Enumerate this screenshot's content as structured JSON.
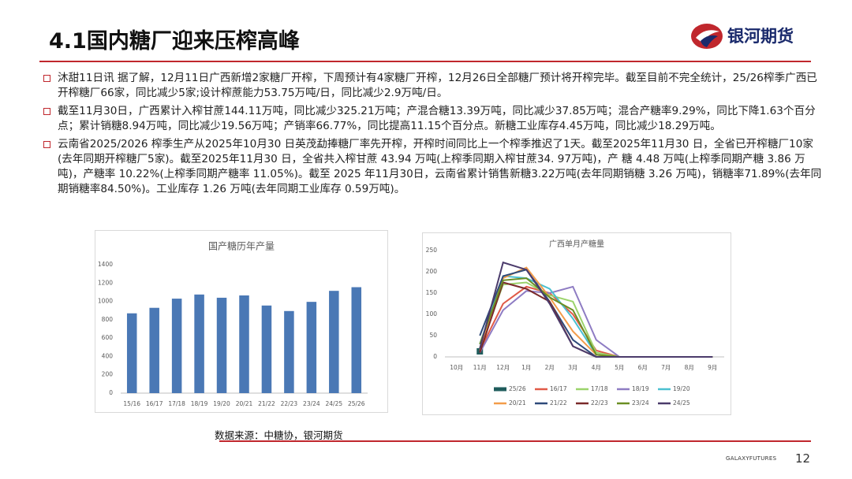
{
  "header": {
    "title": "4.1国内糖厂迎来压榨高峰",
    "logo": "银河期货"
  },
  "bullets": [
    "沐甜11日讯 据了解，12月11日广西新增2家糖厂开榨，下周预计有4家糖厂开榨，12月26日全部糖厂预计将开榨完毕。截至目前不完全统计，25/26榨季广西已开榨糖厂66家，同比减少5家;设计榨蔗能力53.75万吨/日，同比减少2.9万吨/日。",
    "截至11月30日，广西累计入榨甘蔗144.11万吨，同比减少325.21万吨；产混合糖13.39万吨，同比减少37.85万吨；混合产糖率9.29%，同比下降1.63个百分点；累计销糖8.94万吨，同比减少19.56万吨；产销率66.77%，同比提高11.15个百分点。新糖工业库存4.45万吨，同比减少18.29万吨。",
    "云南省2025/2026 榨季生产从2025年10月30 日英茂勐捧糖厂率先开榨，开榨时间同比上一个榨季推迟了1天。截至2025年11月30 日，全省已开榨糖厂10家(去年同期开榨糖厂5家)。截至2025年11月30 日，全省共入榨甘蔗 43.94 万吨(上榨季同期入榨甘蔗34. 97万吨)，产 糖 4.48 万吨(上榨季同期产糖 3.86 万吨)，产糖率 10.22%(上榨季同期产糖率 11.05%)。截至 2025 年11月30日，云南省累计销售新糖3.22万吨(去年同期销糖 3.26 万吨)，销糖率71.89%(去年同期销糖率84.50%)。工业库存 1.26 万吨(去年同期工业库存 0.59万吨)。"
  ],
  "source": "数据来源：中糖协，银河期货",
  "footer": {
    "brand": "GALAXYFUTURES",
    "page": "12"
  },
  "chart_data": [
    {
      "type": "bar",
      "title": "国产糖历年产量",
      "color": "#4a78b5",
      "categories": [
        "15/16",
        "16/17",
        "17/18",
        "18/19",
        "19/20",
        "20/21",
        "21/22",
        "22/23",
        "23/24",
        "24/25",
        "25/26"
      ],
      "values": [
        870,
        930,
        1030,
        1075,
        1040,
        1065,
        955,
        895,
        995,
        1115,
        1155
      ],
      "ylim": [
        0,
        1400
      ],
      "yticks": [
        0,
        200,
        400,
        600,
        800,
        1000,
        1200,
        1400
      ],
      "grid": false
    },
    {
      "type": "line",
      "title": "广西单月产糖量",
      "categories": [
        "10月",
        "11月",
        "12月",
        "1月",
        "2月",
        "3月",
        "4月",
        "5月",
        "6月",
        "7月",
        "8月",
        "9月"
      ],
      "ylim": [
        0,
        250
      ],
      "yticks": [
        0,
        50,
        100,
        150,
        200,
        250
      ],
      "grid": false,
      "series": [
        {
          "name": "25/26",
          "color": "#1f5c5c",
          "values": [
            null,
            13,
            null,
            null,
            null,
            null,
            null,
            null,
            null,
            null,
            null,
            null
          ]
        },
        {
          "name": "16/17",
          "color": "#e05a47",
          "values": [
            null,
            15,
            125,
            165,
            150,
            100,
            15,
            0,
            0,
            0,
            0,
            0
          ]
        },
        {
          "name": "17/18",
          "color": "#9bd36b",
          "values": [
            null,
            20,
            170,
            175,
            145,
            130,
            10,
            0,
            0,
            0,
            0,
            0
          ]
        },
        {
          "name": "18/19",
          "color": "#8e7cc3",
          "values": [
            null,
            10,
            110,
            155,
            150,
            165,
            40,
            0,
            0,
            0,
            0,
            0
          ]
        },
        {
          "name": "19/20",
          "color": "#4bc0d0",
          "values": [
            null,
            30,
            190,
            185,
            160,
            90,
            5,
            0,
            0,
            0,
            0,
            0
          ]
        },
        {
          "name": "20/21",
          "color": "#f39c4a",
          "values": [
            null,
            20,
            185,
            210,
            140,
            60,
            5,
            0,
            0,
            0,
            0,
            0
          ]
        },
        {
          "name": "21/22",
          "color": "#2e4a7a",
          "values": [
            null,
            50,
            190,
            205,
            130,
            40,
            0,
            0,
            0,
            0,
            0,
            0
          ]
        },
        {
          "name": "22/23",
          "color": "#7a2a2a",
          "values": [
            null,
            10,
            175,
            160,
            130,
            25,
            0,
            0,
            0,
            0,
            0,
            0
          ]
        },
        {
          "name": "23/24",
          "color": "#6b8e23",
          "values": [
            null,
            30,
            180,
            185,
            140,
            110,
            5,
            0,
            0,
            0,
            0,
            0
          ]
        },
        {
          "name": "24/25",
          "color": "#4b3b6b",
          "values": [
            null,
            20,
            222,
            205,
            125,
            25,
            0,
            0,
            0,
            0,
            0,
            0
          ]
        }
      ]
    }
  ]
}
